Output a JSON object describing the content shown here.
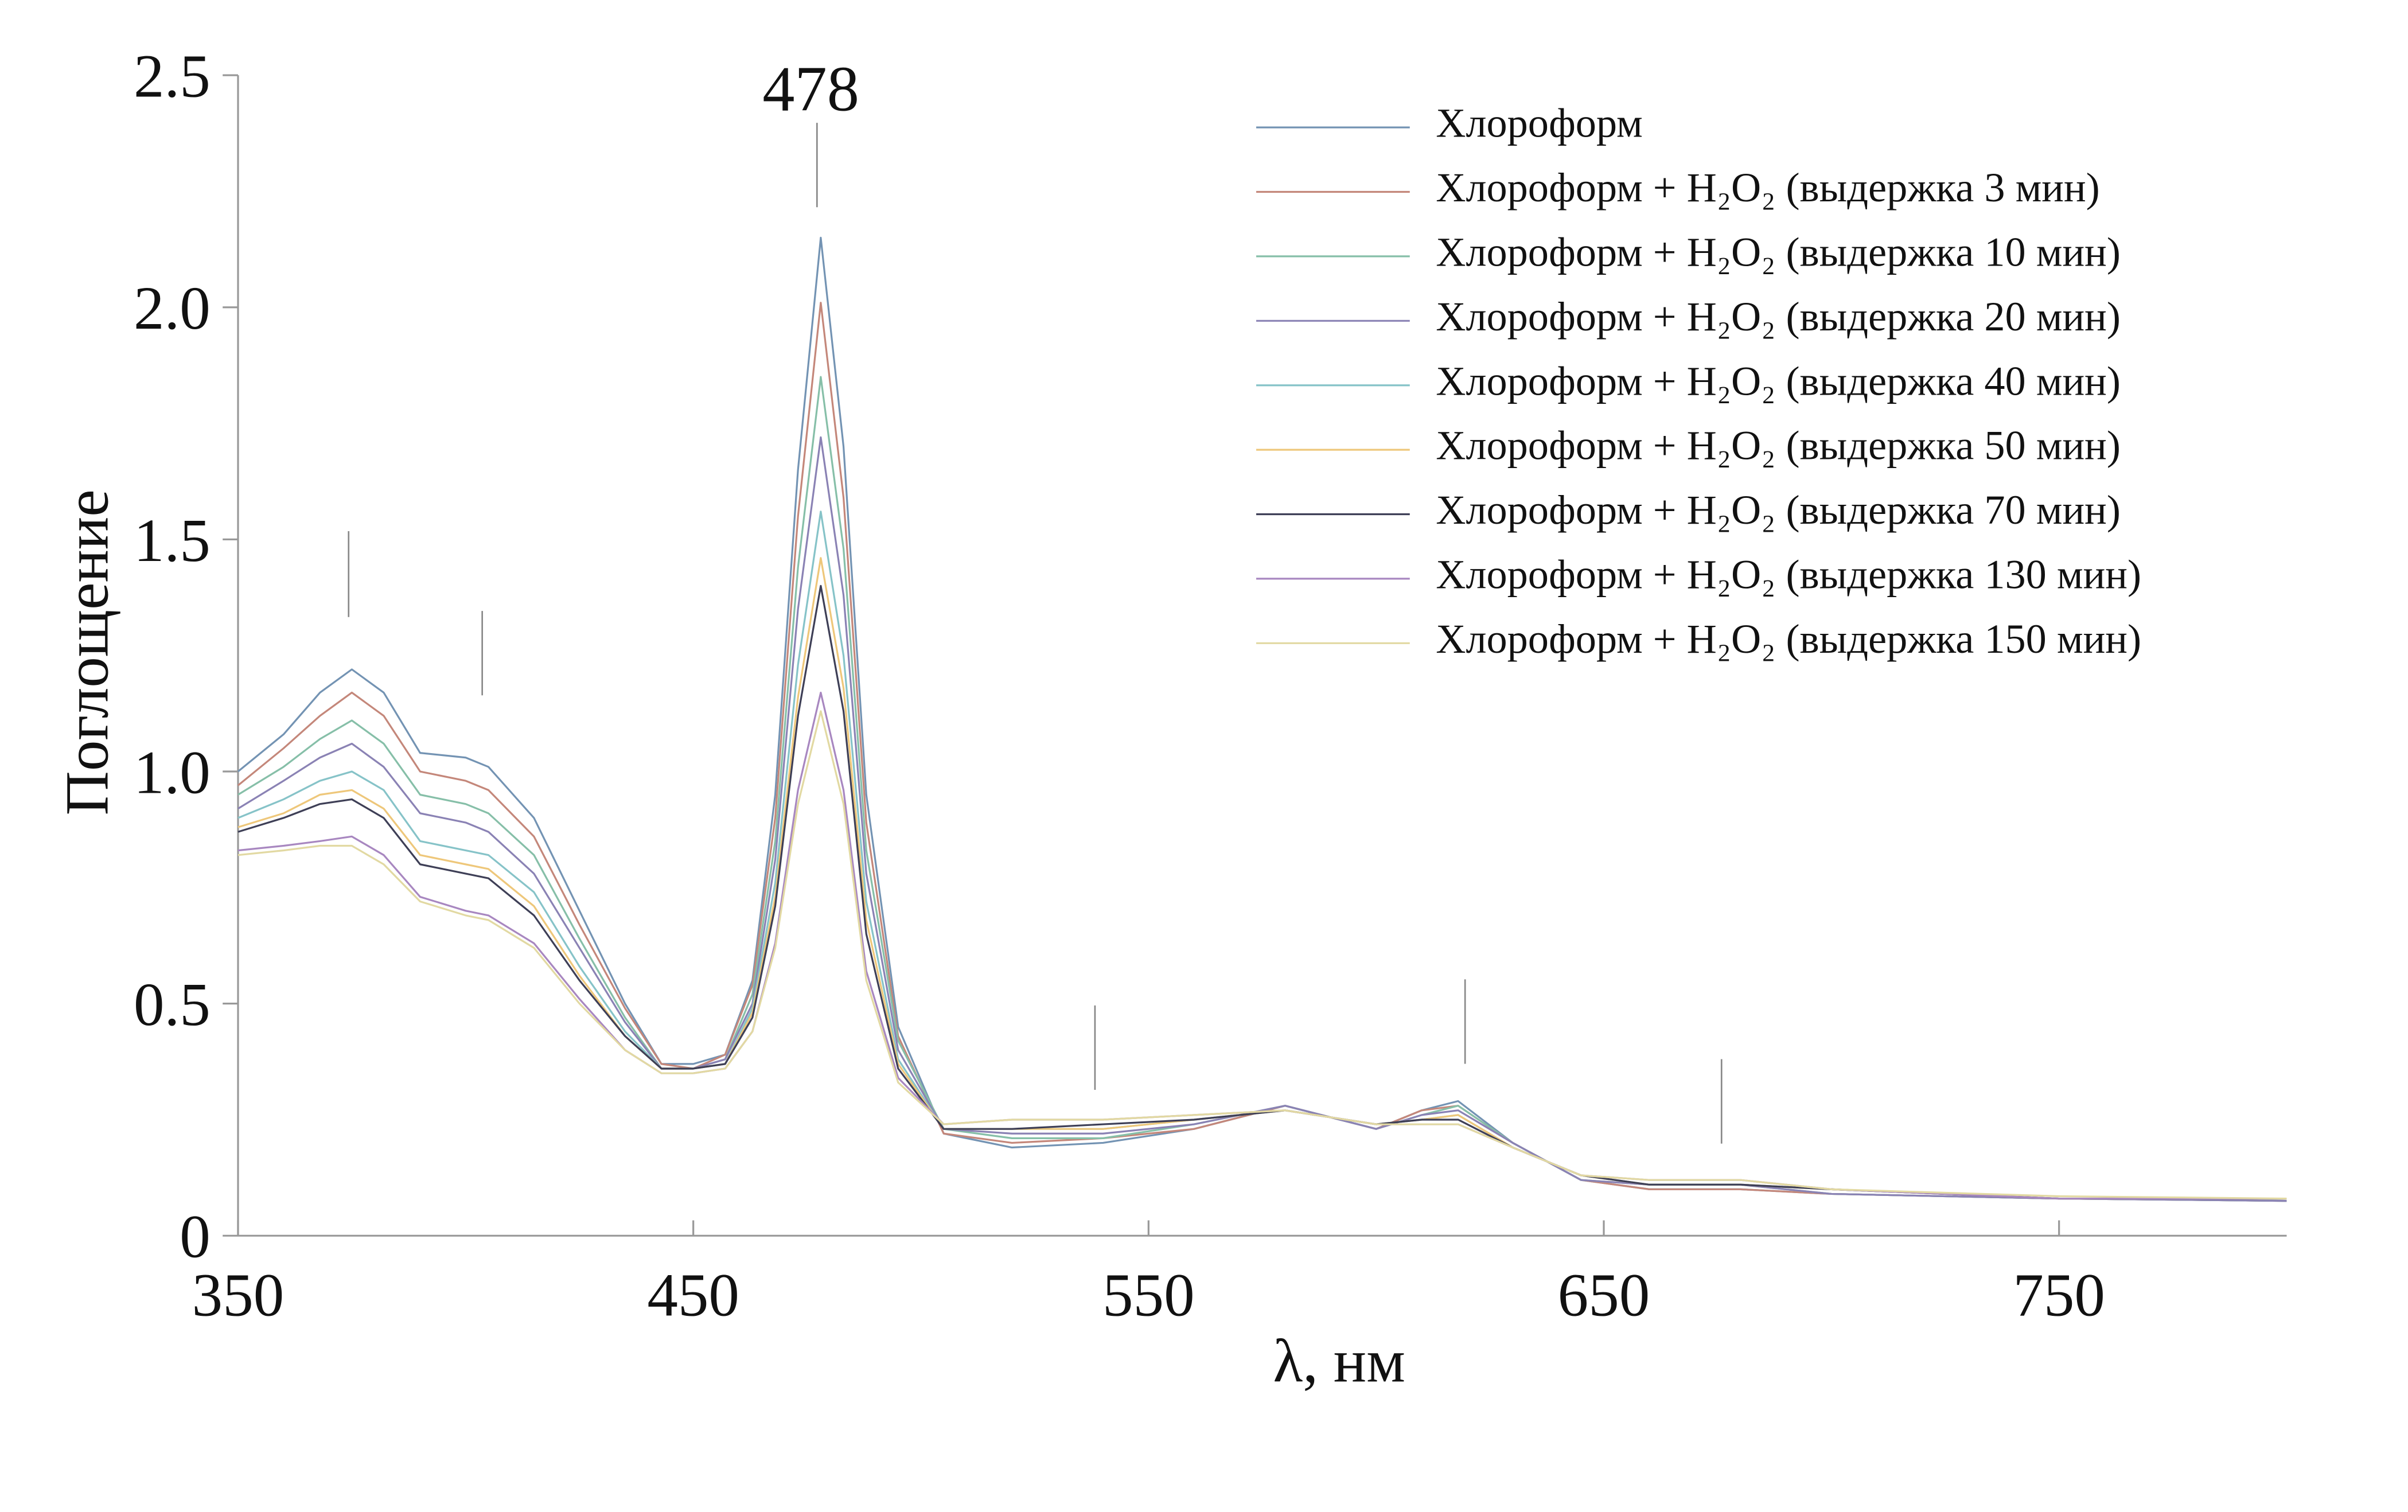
{
  "chart_data": {
    "type": "line",
    "xlabel": "λ, нм",
    "ylabel": "Поглощение",
    "annotation": "478",
    "xlim": [
      350,
      800
    ],
    "ylim": [
      0,
      2.5
    ],
    "xticks": [
      350,
      450,
      550,
      650,
      750
    ],
    "yticks": [
      0,
      0.5,
      {
        "value": 1,
        "label": "1.0"
      },
      1.5,
      {
        "value": 2,
        "label": "2.0"
      },
      2.5
    ],
    "legend": "upper right",
    "x": [
      350,
      360,
      368,
      375,
      382,
      390,
      400,
      405,
      415,
      425,
      435,
      443,
      450,
      457,
      463,
      468,
      473,
      478,
      483,
      488,
      495,
      505,
      520,
      540,
      560,
      580,
      600,
      610,
      618,
      630,
      645,
      660,
      680,
      700,
      750,
      800
    ],
    "series": [
      {
        "name": "Хлороформ",
        "color": "#7393b3",
        "values": [
          1.0,
          1.08,
          1.17,
          1.22,
          1.17,
          1.04,
          1.03,
          1.01,
          0.9,
          0.7,
          0.5,
          0.37,
          0.37,
          0.39,
          0.55,
          0.95,
          1.65,
          2.15,
          1.7,
          0.95,
          0.45,
          0.22,
          0.19,
          0.2,
          0.23,
          0.28,
          0.23,
          0.27,
          0.29,
          0.2,
          0.12,
          0.1,
          0.1,
          0.09,
          0.08,
          0.075
        ]
      },
      {
        "name": "Хлороформ + H₂O₂ (выдержка 3 мин)",
        "color": "#c4877a",
        "values": [
          0.97,
          1.05,
          1.12,
          1.17,
          1.12,
          1.0,
          0.98,
          0.96,
          0.86,
          0.67,
          0.49,
          0.37,
          0.36,
          0.39,
          0.54,
          0.9,
          1.55,
          2.01,
          1.59,
          0.89,
          0.43,
          0.22,
          0.2,
          0.21,
          0.23,
          0.28,
          0.23,
          0.27,
          0.28,
          0.2,
          0.12,
          0.1,
          0.1,
          0.09,
          0.08,
          0.075
        ]
      },
      {
        "name": "Хлороформ + H₂O₂ (выдержка 10 мин)",
        "color": "#86bfa8",
        "values": [
          0.95,
          1.01,
          1.07,
          1.11,
          1.06,
          0.95,
          0.93,
          0.91,
          0.82,
          0.64,
          0.47,
          0.36,
          0.36,
          0.38,
          0.52,
          0.85,
          1.44,
          1.85,
          1.48,
          0.83,
          0.42,
          0.23,
          0.21,
          0.21,
          0.24,
          0.28,
          0.23,
          0.26,
          0.28,
          0.2,
          0.12,
          0.11,
          0.11,
          0.09,
          0.08,
          0.075
        ]
      },
      {
        "name": "Хлороформ + H₂O₂ (выдержка 20 мин)",
        "color": "#8a82b4",
        "values": [
          0.92,
          0.98,
          1.03,
          1.06,
          1.01,
          0.91,
          0.89,
          0.87,
          0.78,
          0.62,
          0.46,
          0.36,
          0.36,
          0.38,
          0.5,
          0.81,
          1.35,
          1.72,
          1.38,
          0.78,
          0.4,
          0.23,
          0.22,
          0.22,
          0.24,
          0.28,
          0.23,
          0.26,
          0.27,
          0.2,
          0.12,
          0.11,
          0.11,
          0.09,
          0.08,
          0.075
        ]
      },
      {
        "name": "Хлороформ + H₂O₂ (выдержка 40 мин)",
        "color": "#86c3c8",
        "values": [
          0.9,
          0.94,
          0.98,
          1.0,
          0.96,
          0.85,
          0.83,
          0.82,
          0.74,
          0.58,
          0.44,
          0.36,
          0.36,
          0.37,
          0.49,
          0.76,
          1.23,
          1.56,
          1.25,
          0.72,
          0.38,
          0.23,
          0.23,
          0.23,
          0.25,
          0.27,
          0.24,
          0.25,
          0.26,
          0.19,
          0.13,
          0.11,
          0.11,
          0.1,
          0.08,
          0.08
        ]
      },
      {
        "name": "Хлороформ + H₂O₂ (выдержка 50 мин)",
        "color": "#eec77a",
        "values": [
          0.88,
          0.91,
          0.95,
          0.96,
          0.92,
          0.82,
          0.8,
          0.79,
          0.71,
          0.56,
          0.43,
          0.36,
          0.36,
          0.37,
          0.48,
          0.73,
          1.16,
          1.46,
          1.18,
          0.68,
          0.37,
          0.23,
          0.23,
          0.23,
          0.25,
          0.27,
          0.24,
          0.25,
          0.26,
          0.19,
          0.13,
          0.11,
          0.11,
          0.1,
          0.08,
          0.08
        ]
      },
      {
        "name": "Хлороформ + H₂O₂ (выдержка 70 мин)",
        "color": "#3e3f56",
        "values": [
          0.87,
          0.9,
          0.93,
          0.94,
          0.9,
          0.8,
          0.78,
          0.77,
          0.69,
          0.55,
          0.43,
          0.36,
          0.36,
          0.37,
          0.47,
          0.71,
          1.12,
          1.4,
          1.13,
          0.65,
          0.36,
          0.23,
          0.23,
          0.24,
          0.25,
          0.27,
          0.24,
          0.25,
          0.25,
          0.19,
          0.13,
          0.11,
          0.11,
          0.1,
          0.08,
          0.08
        ]
      },
      {
        "name": "Хлороформ + H₂O₂ (выдержка 130 мин)",
        "color": "#a887c0",
        "values": [
          0.83,
          0.84,
          0.85,
          0.86,
          0.82,
          0.73,
          0.7,
          0.69,
          0.63,
          0.51,
          0.4,
          0.35,
          0.35,
          0.36,
          0.44,
          0.63,
          0.96,
          1.17,
          0.96,
          0.57,
          0.34,
          0.24,
          0.25,
          0.25,
          0.26,
          0.27,
          0.24,
          0.24,
          0.24,
          0.19,
          0.13,
          0.12,
          0.12,
          0.1,
          0.08,
          0.08
        ]
      },
      {
        "name": "Хлороформ + H₂O₂ (выдержка 150 мин)",
        "color": "#e2d9a2",
        "values": [
          0.82,
          0.83,
          0.84,
          0.84,
          0.8,
          0.72,
          0.69,
          0.68,
          0.62,
          0.5,
          0.4,
          0.35,
          0.35,
          0.36,
          0.44,
          0.62,
          0.93,
          1.13,
          0.93,
          0.55,
          0.33,
          0.24,
          0.25,
          0.25,
          0.26,
          0.27,
          0.24,
          0.24,
          0.24,
          0.19,
          0.13,
          0.12,
          0.12,
          0.1,
          0.085,
          0.08
        ]
      }
    ]
  }
}
